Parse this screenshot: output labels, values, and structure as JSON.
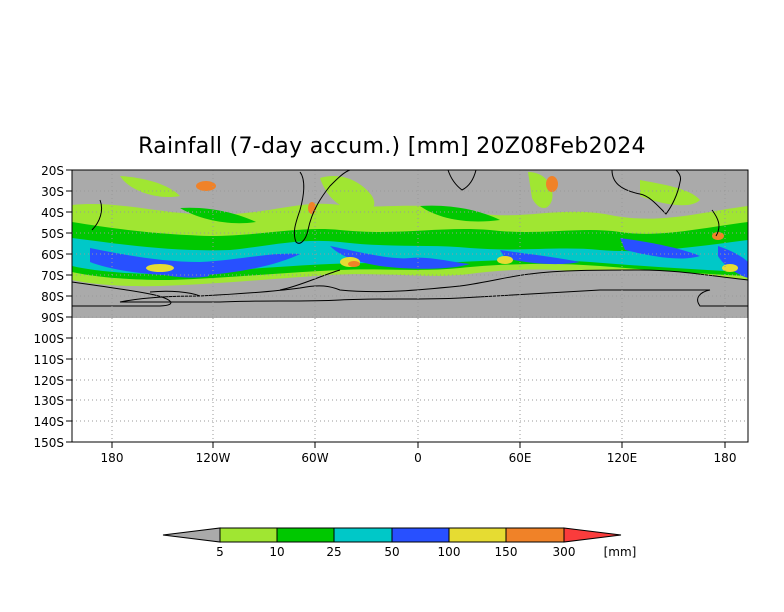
{
  "title": "Rainfall (7-day accum.) [mm] 20Z08Feb2024",
  "map": {
    "lat_labels": [
      "20S",
      "30S",
      "40S",
      "50S",
      "60S",
      "70S",
      "80S",
      "90S",
      "100S",
      "110S",
      "120S",
      "130S",
      "140S",
      "150S"
    ],
    "lon_labels": [
      "180",
      "120W",
      "60W",
      "0",
      "60E",
      "120E",
      "180"
    ],
    "data_region": "20S-90S",
    "no_data_color": "#aaaaaa"
  },
  "colorbar": {
    "levels": [
      "5",
      "10",
      "25",
      "50",
      "100",
      "150",
      "300"
    ],
    "unit": "[mm]",
    "colors": [
      "#aaaaaa",
      "#a0e632",
      "#00c800",
      "#00c8c8",
      "#2850ff",
      "#e6dc32",
      "#f08228",
      "#fa3c3c"
    ]
  }
}
